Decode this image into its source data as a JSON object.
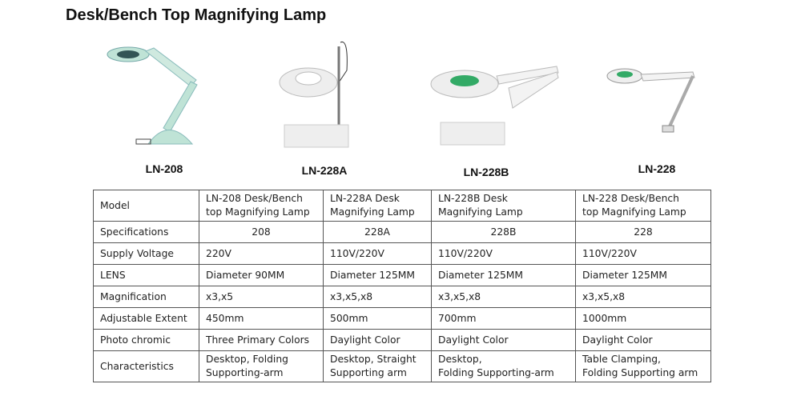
{
  "title": "Desk/Bench Top Magnifying Lamp",
  "products": [
    {
      "label": "LN-208",
      "color": "#bfe3d6"
    },
    {
      "label": "LN-228A",
      "color": "#eeeeee"
    },
    {
      "label": "LN-228B",
      "color": "#eeeeee"
    },
    {
      "label": "LN-228",
      "color": "#eeeeee"
    }
  ],
  "table": {
    "rows": [
      {
        "header": "Model",
        "cells": [
          [
            "LN-208   Desk/Bench",
            "top Magnifying Lamp"
          ],
          [
            "LN-228A   Desk",
            "Magnifying Lamp"
          ],
          [
            "LN-228B Desk",
            "Magnifying Lamp"
          ],
          [
            "LN-228   Desk/Bench",
            "top Magnifying Lamp"
          ]
        ]
      },
      {
        "header": "Specifications",
        "cells": [
          [
            "208"
          ],
          [
            "228A"
          ],
          [
            "228B"
          ],
          [
            "228"
          ]
        ]
      },
      {
        "header": "Supply Voltage",
        "cells": [
          [
            "220V"
          ],
          [
            "110V/220V"
          ],
          [
            "110V/220V"
          ],
          [
            "110V/220V"
          ]
        ]
      },
      {
        "header": "LENS",
        "cells": [
          [
            "Diameter 90MM"
          ],
          [
            "Diameter 125MM"
          ],
          [
            "Diameter 125MM"
          ],
          [
            "Diameter 125MM"
          ]
        ]
      },
      {
        "header": "Magnification",
        "cells": [
          [
            "x3,x5"
          ],
          [
            "x3,x5,x8"
          ],
          [
            "x3,x5,x8"
          ],
          [
            "x3,x5,x8"
          ]
        ]
      },
      {
        "header": "Adjustable Extent",
        "cells": [
          [
            "450mm"
          ],
          [
            "500mm"
          ],
          [
            "700mm"
          ],
          [
            "1000mm"
          ]
        ]
      },
      {
        "header": "Photo chromic",
        "cells": [
          [
            "Three Primary Colors"
          ],
          [
            "Daylight Color"
          ],
          [
            "Daylight Color"
          ],
          [
            "Daylight Color"
          ]
        ]
      },
      {
        "header": "Characteristics",
        "cells": [
          [
            "Desktop, Folding",
            "Supporting-arm"
          ],
          [
            "Desktop, Straight",
            "Supporting arm"
          ],
          [
            "Desktop,",
            "Folding  Supporting-arm"
          ],
          [
            "Table Clamping,",
            "Folding Supporting arm"
          ]
        ]
      }
    ]
  }
}
